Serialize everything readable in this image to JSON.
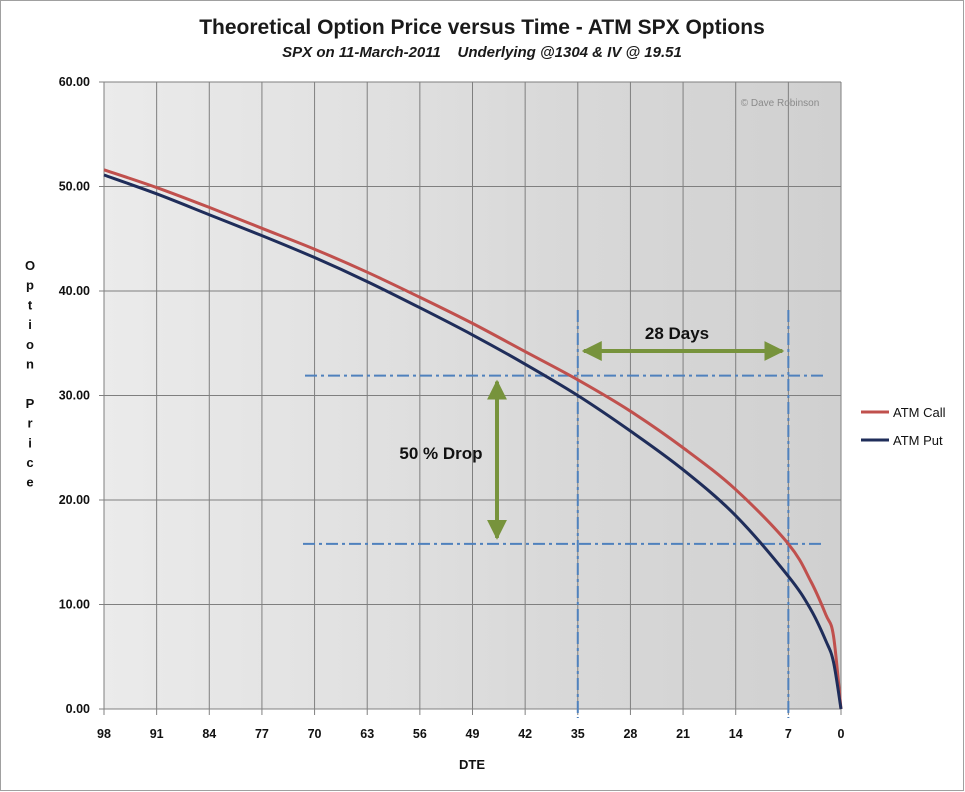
{
  "chart_data": {
    "type": "line",
    "title": "Theoretical Option Price versus Time - ATM SPX Options",
    "subtitle": "SPX on 11-March-2011    Underlying @1304 & IV @ 19.51",
    "xlabel": "DTE",
    "ylabel": "Option Price",
    "x_reversed": true,
    "xlim": [
      98,
      0
    ],
    "ylim": [
      0,
      60
    ],
    "x_ticks": [
      "98",
      "91",
      "84",
      "77",
      "70",
      "63",
      "56",
      "49",
      "42",
      "35",
      "28",
      "21",
      "14",
      "7",
      "0"
    ],
    "y_ticks": [
      "60.00",
      "50.00",
      "40.00",
      "30.00",
      "20.00",
      "10.00",
      "0.00"
    ],
    "grid": true,
    "legend_position": "right",
    "x": [
      98,
      91,
      84,
      77,
      70,
      63,
      56,
      49,
      42,
      35,
      28,
      21,
      14,
      7,
      4,
      2,
      1,
      0
    ],
    "series": [
      {
        "name": "ATM Call",
        "color": "#c0504d",
        "values": [
          51.6,
          49.9,
          48.0,
          46.0,
          44.0,
          41.8,
          39.4,
          36.9,
          34.2,
          31.5,
          28.5,
          25.0,
          21.0,
          15.8,
          12.2,
          9.0,
          7.0,
          0.0
        ]
      },
      {
        "name": "ATM Put",
        "color": "#1f2d5a",
        "values": [
          51.1,
          49.3,
          47.3,
          45.3,
          43.2,
          40.9,
          38.4,
          35.8,
          33.0,
          30.0,
          26.6,
          22.9,
          18.5,
          12.7,
          9.5,
          6.5,
          4.5,
          0.0
        ]
      }
    ],
    "annotations": {
      "days_label": "28 Days",
      "drop_label": "50 % Drop",
      "ref_x_values": [
        35,
        7
      ],
      "ref_y_values": [
        31.9,
        15.8
      ]
    },
    "copyright": "© Dave Robinson",
    "colors": {
      "plot_bg": "#dedede",
      "grid": "#7f7f7f",
      "ref_lines": "#4f81bd",
      "arrows": "#77933c"
    }
  }
}
